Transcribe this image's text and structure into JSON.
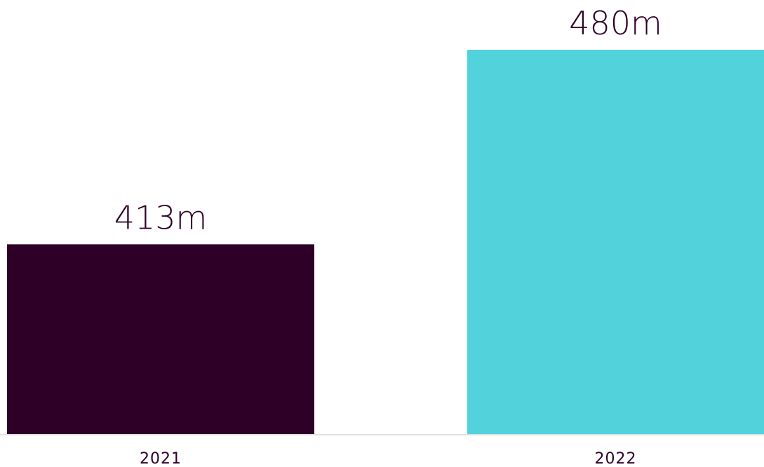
{
  "chart_data": {
    "type": "bar",
    "categories": [
      "2021",
      "2022"
    ],
    "values": [
      413,
      480
    ],
    "value_labels": [
      "413m",
      "480m"
    ],
    "colors": [
      "#2e0027",
      "#52d3dc"
    ],
    "axis_color": "#e0e0e0",
    "grid": false,
    "legend": "none"
  }
}
